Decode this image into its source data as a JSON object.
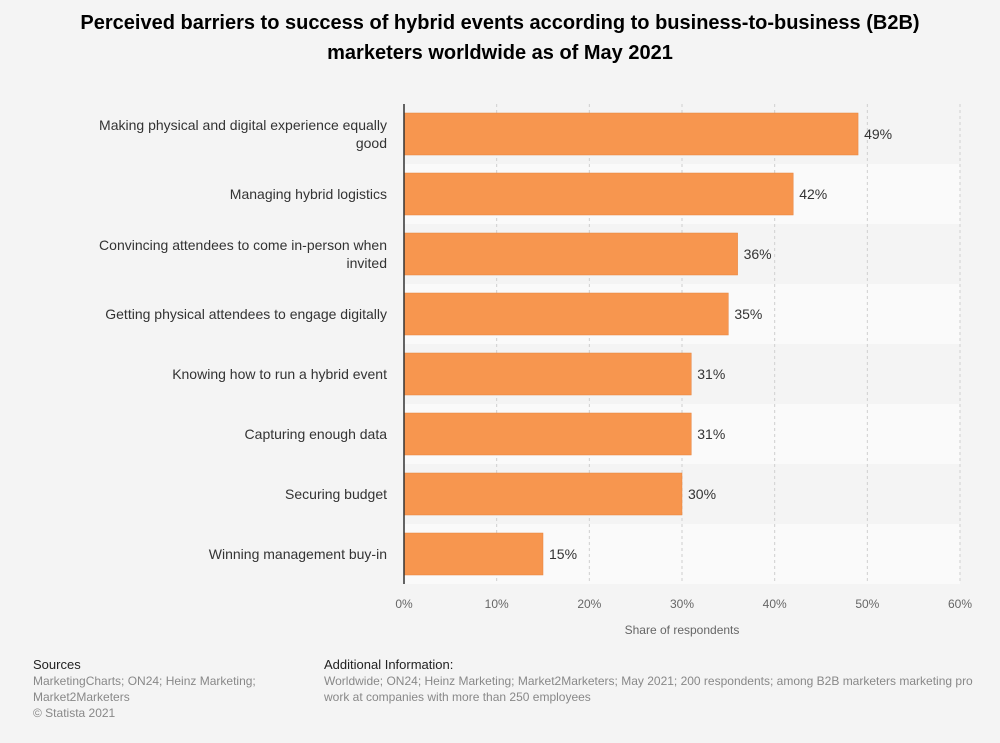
{
  "chart_data": {
    "type": "bar",
    "orientation": "horizontal",
    "title": "Perceived barriers to success of hybrid events according to business-to-business (B2B) marketers worldwide as of May 2021",
    "categories": [
      [
        "Making physical and digital experience equally",
        "good"
      ],
      [
        "Managing hybrid logistics"
      ],
      [
        "Convincing attendees to come in-person when",
        "invited"
      ],
      [
        "Getting physical attendees to engage digitally"
      ],
      [
        "Knowing how to run a hybrid event"
      ],
      [
        "Capturing enough data"
      ],
      [
        "Securing budget"
      ],
      [
        "Winning management buy-in"
      ]
    ],
    "values": [
      49,
      42,
      36,
      35,
      31,
      31,
      30,
      15
    ],
    "value_labels": [
      "49%",
      "42%",
      "36%",
      "35%",
      "31%",
      "31%",
      "30%",
      "15%"
    ],
    "xlabel": "Share of respondents",
    "ylabel": "",
    "xlim": [
      0,
      60
    ],
    "ticks": [
      0,
      10,
      20,
      30,
      40,
      50,
      60
    ],
    "tick_labels": [
      "0%",
      "10%",
      "20%",
      "30%",
      "40%",
      "50%",
      "60%"
    ],
    "bar_color": "#f7964f",
    "grid": true
  },
  "footer": {
    "sources_heading": "Sources",
    "sources_lines": [
      "MarketingCharts; ON24; Heinz Marketing;",
      "Market2Marketers",
      "© Statista 2021"
    ],
    "info_heading": "Additional Information:",
    "info_lines": [
      "Worldwide; ON24; Heinz Marketing; Market2Marketers; May 2021; 200 respondents; among B2B marketers marketing pro",
      "work at companies with more than 250 employees"
    ]
  }
}
